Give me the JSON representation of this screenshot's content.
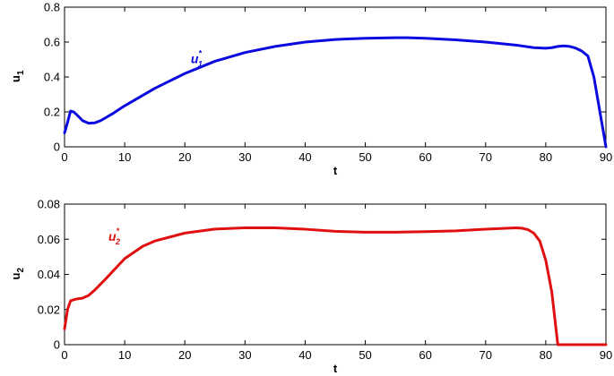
{
  "chart_data": [
    {
      "type": "line",
      "xlabel": "t",
      "ylabel": "u",
      "ylabel_subscript": "1",
      "xlim": [
        0,
        90
      ],
      "ylim": [
        0,
        0.8
      ],
      "xticks": [
        0,
        10,
        20,
        30,
        40,
        50,
        60,
        70,
        80,
        90
      ],
      "yticks": [
        0,
        0.2,
        0.4,
        0.6,
        0.8
      ],
      "ytick_labels": [
        "0",
        "0.2",
        "0.4",
        "0.6",
        "0.8"
      ],
      "grid": false,
      "series": [
        {
          "color": "#0a0ae0",
          "x": [
            0,
            0.5,
            1,
            1.5,
            2,
            3,
            4,
            5,
            6,
            8,
            10,
            15,
            20,
            25,
            30,
            35,
            40,
            45,
            50,
            55,
            57,
            60,
            65,
            70,
            75,
            78,
            80,
            81,
            82,
            83,
            84,
            85,
            86,
            87,
            88,
            89,
            90
          ],
          "y": [
            0.08,
            0.14,
            0.205,
            0.2,
            0.185,
            0.15,
            0.135,
            0.137,
            0.15,
            0.19,
            0.235,
            0.335,
            0.42,
            0.49,
            0.54,
            0.575,
            0.6,
            0.615,
            0.622,
            0.625,
            0.625,
            0.622,
            0.613,
            0.6,
            0.583,
            0.568,
            0.565,
            0.568,
            0.575,
            0.578,
            0.575,
            0.565,
            0.548,
            0.52,
            0.4,
            0.2,
            0.0
          ]
        }
      ],
      "annotation": {
        "text": "u",
        "sub": "1",
        "sup": "*",
        "x": 21,
        "y": 0.48,
        "color": "#0a0ae0"
      }
    },
    {
      "type": "line",
      "xlabel": "t",
      "ylabel": "u",
      "ylabel_subscript": "2",
      "xlim": [
        0,
        90
      ],
      "ylim": [
        0,
        0.08
      ],
      "xticks": [
        0,
        10,
        20,
        30,
        40,
        50,
        60,
        70,
        80,
        90
      ],
      "yticks": [
        0,
        0.02,
        0.04,
        0.06,
        0.08
      ],
      "ytick_labels": [
        "0",
        "0.02",
        "0.04",
        "0.06",
        "0.08"
      ],
      "grid": false,
      "series": [
        {
          "color": "#e01010",
          "x": [
            0,
            0.5,
            1,
            2,
            3,
            4,
            5,
            7,
            10,
            13,
            15,
            20,
            25,
            30,
            35,
            40,
            45,
            50,
            55,
            60,
            65,
            70,
            75,
            76,
            77,
            78,
            79,
            80,
            81,
            82,
            90
          ],
          "y": [
            0.009,
            0.02,
            0.025,
            0.026,
            0.0265,
            0.028,
            0.031,
            0.038,
            0.049,
            0.056,
            0.059,
            0.0635,
            0.0658,
            0.0665,
            0.0665,
            0.0657,
            0.0645,
            0.064,
            0.064,
            0.0643,
            0.0648,
            0.0657,
            0.0665,
            0.0663,
            0.0655,
            0.0635,
            0.059,
            0.048,
            0.03,
            0.0,
            0.0
          ]
        }
      ],
      "annotation": {
        "text": "u",
        "sub": "2",
        "sup": "*",
        "x": 7.3,
        "y": 0.059,
        "color": "#e01010"
      }
    }
  ]
}
